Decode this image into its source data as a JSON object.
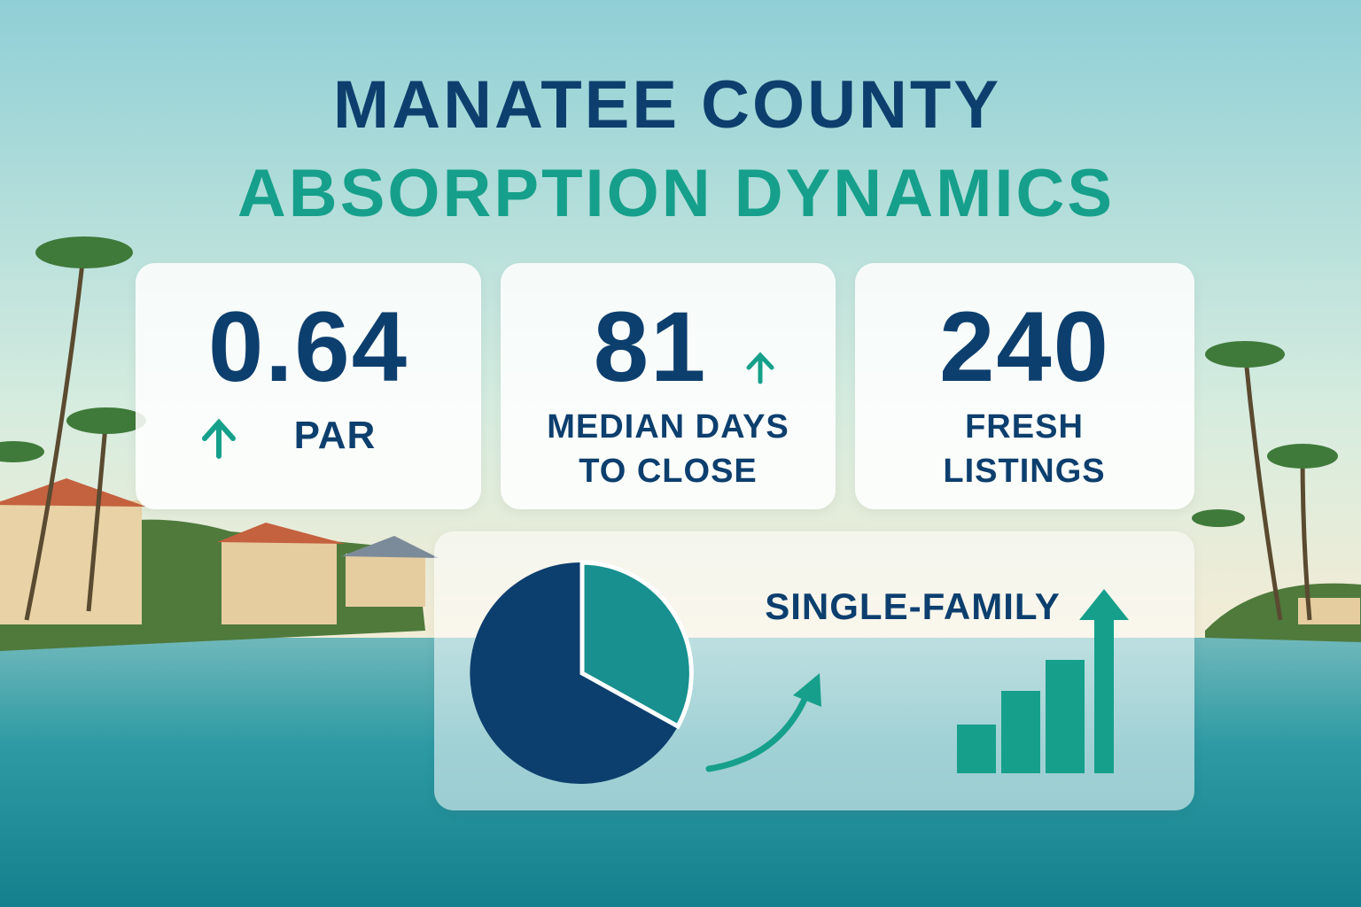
{
  "header": {
    "title": "MANATEE COUNTY",
    "subtitle": "ABSORPTION DYNAMICS"
  },
  "cards": [
    {
      "value": 0.64,
      "label": "PAR"
    },
    {
      "value": 81,
      "label": "MEDIAN DAYS TO CLOSE"
    },
    {
      "value": 240,
      "label": "FRESH LISTINGS"
    }
  ],
  "panel": {
    "label": "SINGLE-FAMILY"
  }
}
